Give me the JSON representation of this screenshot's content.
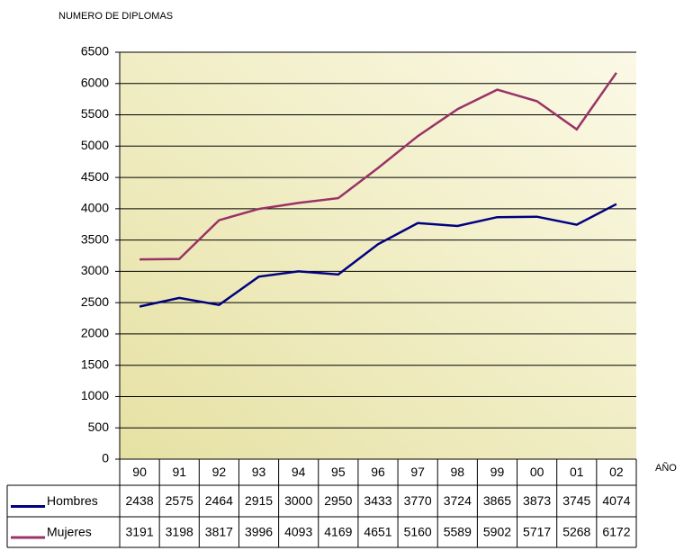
{
  "chart_data": {
    "type": "line",
    "y_label": "NUMERO DE DIPLOMAS",
    "x_label": "AÑO",
    "categories": [
      "90",
      "91",
      "92",
      "93",
      "94",
      "95",
      "96",
      "97",
      "98",
      "99",
      "00",
      "01",
      "02"
    ],
    "series": [
      {
        "name": "Hombres",
        "color": "#000080",
        "values": [
          2438,
          2575,
          2464,
          2915,
          3000,
          2950,
          3433,
          3770,
          3724,
          3865,
          3873,
          3745,
          4074
        ]
      },
      {
        "name": "Mujeres",
        "color": "#993366",
        "values": [
          3191,
          3198,
          3817,
          3996,
          4093,
          4169,
          4651,
          5160,
          5589,
          5902,
          5717,
          5268,
          6172
        ]
      }
    ],
    "ylim": [
      0,
      6500
    ],
    "yticks": [
      0,
      500,
      1000,
      1500,
      2000,
      2500,
      3000,
      3500,
      4000,
      4500,
      5000,
      5500,
      6000,
      6500
    ],
    "grid": true
  }
}
